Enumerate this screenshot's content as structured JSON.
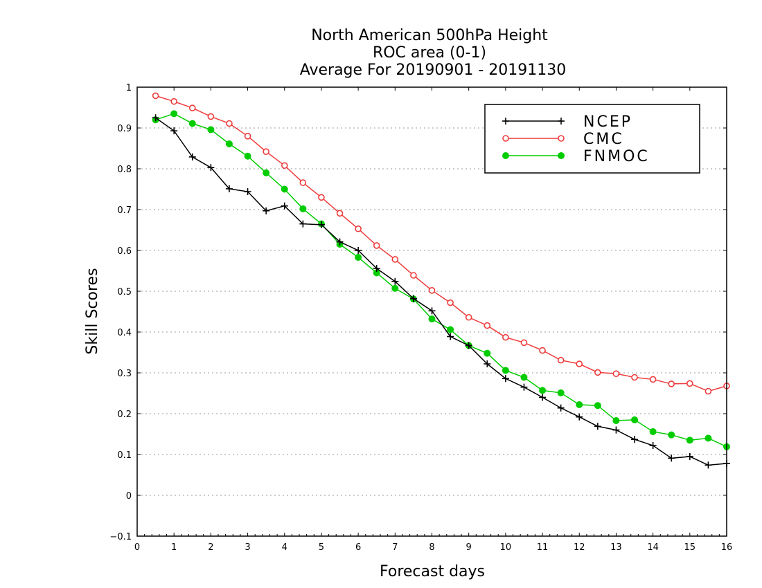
{
  "chart_data": {
    "type": "line",
    "title": [
      "North American 500hPa Height",
      "ROC area (0-1)",
      "Average For 20190901 - 20191130"
    ],
    "xlabel": "Forecast days",
    "ylabel": "Skill Scores",
    "xlim": [
      0,
      16
    ],
    "ylim": [
      -0.1,
      1
    ],
    "xticks": [
      "0",
      "1",
      "2",
      "3",
      "4",
      "5",
      "6",
      "7",
      "8",
      "9",
      "10",
      "11",
      "12",
      "13",
      "14",
      "15",
      "16"
    ],
    "yticks": [
      "−0.1",
      "0",
      "0.1",
      "0.2",
      "0.3",
      "0.4",
      "0.5",
      "0.6",
      "0.7",
      "0.8",
      "0.9",
      "1"
    ],
    "ytick_values": [
      -0.1,
      0,
      0.1,
      0.2,
      0.3,
      0.4,
      0.5,
      0.6,
      0.7,
      0.8,
      0.9,
      1
    ],
    "grid": true,
    "legend_position": "top-right",
    "x": [
      0.5,
      1,
      1.5,
      2,
      2.5,
      3,
      3.5,
      4,
      4.5,
      5,
      5.5,
      6,
      6.5,
      7,
      7.5,
      8,
      8.5,
      9,
      9.5,
      10,
      10.5,
      11,
      11.5,
      12,
      12.5,
      13,
      13.5,
      14,
      14.5,
      15,
      15.5,
      16
    ],
    "series": [
      {
        "name": "NCEP",
        "color": "#000000",
        "marker": "plus",
        "values": [
          0.925,
          0.893,
          0.829,
          0.803,
          0.751,
          0.744,
          0.697,
          0.709,
          0.665,
          0.663,
          0.621,
          0.6,
          0.556,
          0.524,
          0.482,
          0.452,
          0.389,
          0.367,
          0.322,
          0.286,
          0.265,
          0.24,
          0.214,
          0.192,
          0.169,
          0.16,
          0.137,
          0.122,
          0.091,
          0.095,
          0.074,
          0.078
        ]
      },
      {
        "name": "CMC",
        "color": "#ee3b3b",
        "marker": "open-circle",
        "values": [
          0.979,
          0.965,
          0.949,
          0.928,
          0.911,
          0.88,
          0.842,
          0.808,
          0.766,
          0.73,
          0.691,
          0.653,
          0.612,
          0.578,
          0.539,
          0.502,
          0.472,
          0.436,
          0.416,
          0.387,
          0.374,
          0.355,
          0.331,
          0.322,
          0.301,
          0.298,
          0.289,
          0.284,
          0.273,
          0.274,
          0.255,
          0.268
        ]
      },
      {
        "name": "FNMOC",
        "color": "#00cc00",
        "marker": "filled-circle",
        "values": [
          0.92,
          0.935,
          0.911,
          0.896,
          0.861,
          0.831,
          0.79,
          0.75,
          0.702,
          0.665,
          0.615,
          0.583,
          0.545,
          0.507,
          0.481,
          0.432,
          0.406,
          0.367,
          0.348,
          0.306,
          0.289,
          0.257,
          0.251,
          0.222,
          0.22,
          0.183,
          0.185,
          0.156,
          0.148,
          0.135,
          0.14,
          0.119
        ]
      }
    ]
  }
}
